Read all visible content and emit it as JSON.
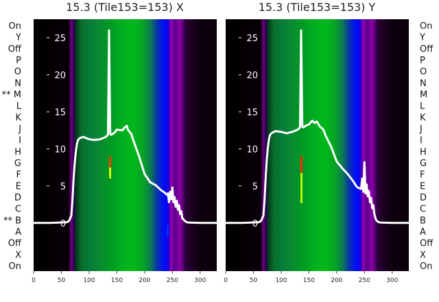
{
  "chart_data": [
    {
      "type": "heatmap",
      "title": "15.3 (Tile153=153) X",
      "x_ticks": [
        0,
        50,
        100,
        150,
        200,
        250,
        300
      ],
      "y_ticks": [
        0,
        5,
        10,
        15,
        20,
        25
      ],
      "xlim": [
        0,
        330
      ],
      "ylim": [
        -6.5,
        27.5
      ],
      "left_labels": [
        "On",
        "Y",
        "Off",
        "P",
        "O",
        "N",
        "** M",
        "L",
        "K",
        "J",
        "I",
        "H",
        "G",
        "F",
        "E",
        "D",
        "C",
        "** B",
        "A",
        "Off",
        "X",
        "On"
      ],
      "series": [
        {
          "type": "line",
          "color": "#ffffff",
          "x": [
            0,
            30,
            60,
            64,
            68,
            70,
            72,
            74,
            76,
            78,
            80,
            84,
            90,
            100,
            110,
            120,
            130,
            134,
            136,
            138,
            140,
            146,
            150,
            160,
            164,
            168,
            170,
            176,
            180,
            190,
            200,
            210,
            220,
            230,
            236,
            240,
            242,
            244,
            246,
            248,
            250,
            252,
            254,
            256,
            258,
            260,
            262,
            264,
            266,
            268,
            270,
            272,
            274,
            276,
            280,
            300,
            330
          ],
          "y": [
            0,
            0,
            0.1,
            0.3,
            1.0,
            3.0,
            6.0,
            8.0,
            9.6,
            10.6,
            11.2,
            11.5,
            11.6,
            11.3,
            11.2,
            11.3,
            11.6,
            11.9,
            26.0,
            12.0,
            11.9,
            12.2,
            12.6,
            12.5,
            12.9,
            13.1,
            12.6,
            12.0,
            11.1,
            9.0,
            6.6,
            5.5,
            5.1,
            4.4,
            4.1,
            3.8,
            4.0,
            2.8,
            4.2,
            3.2,
            4.8,
            2.8,
            3.5,
            2.2,
            3.0,
            1.8,
            2.4,
            1.2,
            1.6,
            0.6,
            0.5,
            0.3,
            0.2,
            0.1,
            0.05,
            0,
            0
          ]
        }
      ]
    },
    {
      "type": "heatmap",
      "title": "15.3 (Tile153=153) Y",
      "x_ticks": [
        0,
        50,
        100,
        150,
        200,
        250,
        300
      ],
      "y_ticks": [
        0,
        5,
        10,
        15,
        20,
        25
      ],
      "xlim": [
        0,
        330
      ],
      "ylim": [
        -6.5,
        27.5
      ],
      "right_labels": [
        "On",
        "Y",
        "Off",
        "P",
        "O",
        "N",
        "M",
        "L",
        "K",
        "J",
        "I",
        "H",
        "G",
        "F",
        "E",
        "D",
        "C",
        "B",
        "A",
        "Off",
        "X",
        "On"
      ],
      "series": [
        {
          "type": "line",
          "color": "#ffffff",
          "x": [
            0,
            30,
            60,
            64,
            68,
            70,
            72,
            74,
            76,
            78,
            80,
            84,
            90,
            100,
            110,
            120,
            130,
            134,
            136,
            138,
            140,
            146,
            150,
            156,
            160,
            164,
            170,
            176,
            180,
            190,
            200,
            210,
            220,
            230,
            236,
            240,
            244,
            246,
            248,
            250,
            252,
            254,
            256,
            258,
            260,
            262,
            264,
            266,
            268,
            270,
            272,
            274,
            276,
            280,
            300,
            330
          ],
          "y": [
            0,
            0,
            0.1,
            0.3,
            1.0,
            3.0,
            6.0,
            8.5,
            10.2,
            11.3,
            11.9,
            12.2,
            12.4,
            12.3,
            12.1,
            12.3,
            12.6,
            12.9,
            26.0,
            13.0,
            12.9,
            13.2,
            13.3,
            13.8,
            13.5,
            13.7,
            13.0,
            12.6,
            11.8,
            10.3,
            8.3,
            7.4,
            6.6,
            5.6,
            4.9,
            4.7,
            4.6,
            6.0,
            4.2,
            8.2,
            4.0,
            5.2,
            3.6,
            4.3,
            2.8,
            3.4,
            2.0,
            2.4,
            1.2,
            0.6,
            0.3,
            0.2,
            0.1,
            0.05,
            0,
            0
          ]
        }
      ]
    }
  ]
}
